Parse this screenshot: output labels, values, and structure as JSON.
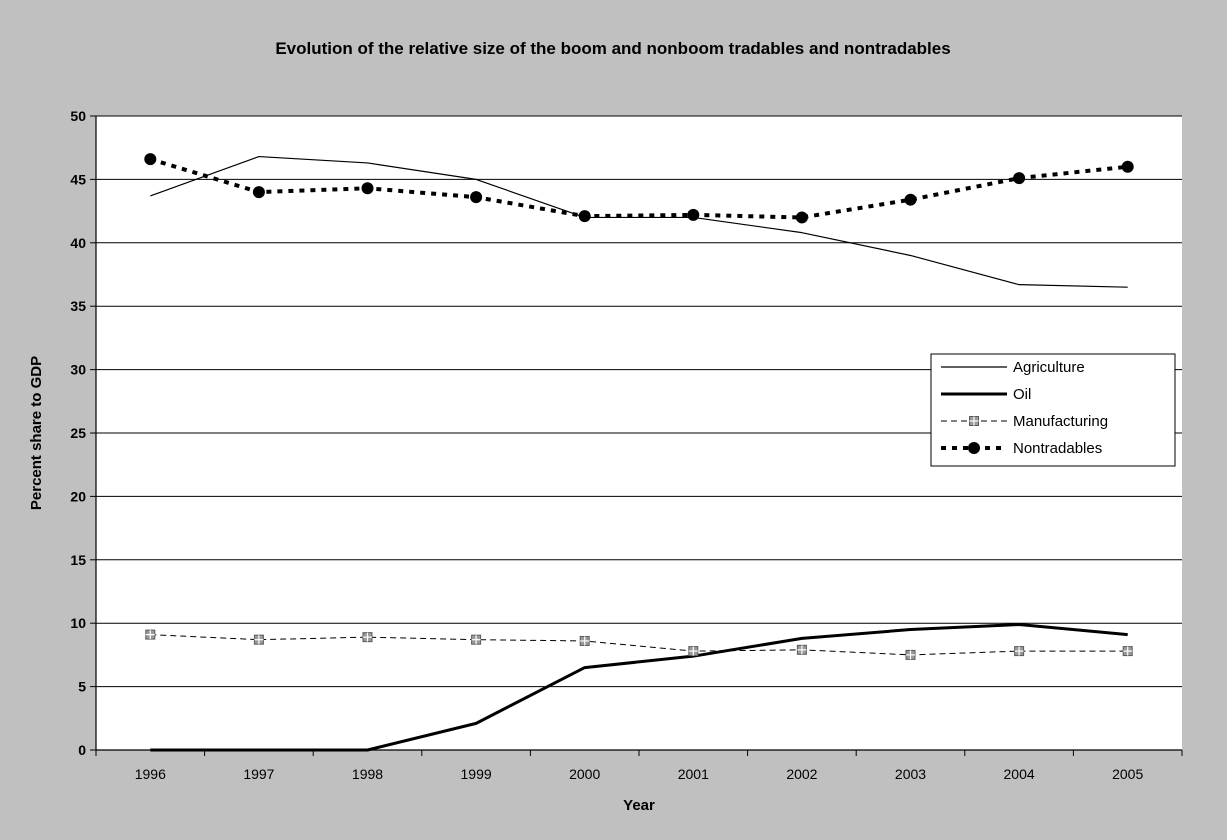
{
  "chart_data": {
    "type": "line",
    "title": "Evolution of the relative size of the boom and nonboom tradables and nontradables",
    "xlabel": "Year",
    "ylabel": "Percent share to GDP",
    "categories": [
      "1996",
      "1997",
      "1998",
      "1999",
      "2000",
      "2001",
      "2002",
      "2003",
      "2004",
      "2005"
    ],
    "ylim": [
      0,
      50
    ],
    "yticks": [
      0,
      5,
      10,
      15,
      20,
      25,
      30,
      35,
      40,
      45,
      50
    ],
    "grid": "horizontal",
    "legend_position": "right",
    "series": [
      {
        "name": "Agriculture",
        "style": "thin-solid",
        "color": "#000000",
        "values": [
          43.7,
          46.8,
          46.3,
          45.0,
          42.0,
          42.0,
          40.8,
          39.0,
          36.7,
          36.5
        ]
      },
      {
        "name": "Oil",
        "style": "thick-solid",
        "color": "#000000",
        "values": [
          0.0,
          0.0,
          0.0,
          2.1,
          6.5,
          7.4,
          8.8,
          9.5,
          9.9,
          9.1
        ]
      },
      {
        "name": "Manufacturing",
        "style": "dashed-square",
        "color": "#000000",
        "values": [
          9.1,
          8.7,
          8.9,
          8.7,
          8.6,
          7.8,
          7.9,
          7.5,
          7.8,
          7.8
        ]
      },
      {
        "name": "Nontradables",
        "style": "dotted-circle",
        "color": "#000000",
        "values": [
          46.6,
          44.0,
          44.3,
          43.6,
          42.1,
          42.2,
          42.0,
          43.4,
          45.1,
          46.0
        ]
      }
    ]
  }
}
